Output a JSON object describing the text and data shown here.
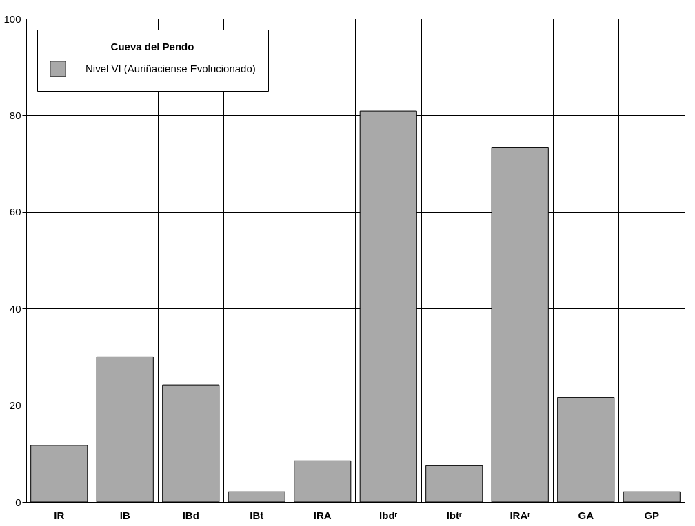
{
  "chart_data": {
    "type": "bar",
    "categories": [
      "IR",
      "IB",
      "IBd",
      "IBt",
      "IRA",
      "Ibdʳ",
      "Ibtʳ",
      "IRAʳ",
      "GA",
      "GP"
    ],
    "series": [
      {
        "name": "Nivel VI (Auriñaciense Evolucionado)",
        "color": "#a9a9a9",
        "values": [
          11.7,
          30.0,
          24.2,
          2.1,
          8.5,
          80.9,
          7.5,
          73.3,
          21.6,
          2.1
        ]
      }
    ],
    "legend_title": "Cueva del Pendo",
    "legend": "top left",
    "ylim": [
      0,
      100
    ],
    "yticks": [
      0,
      20,
      40,
      60,
      80,
      100
    ],
    "grid": true
  }
}
